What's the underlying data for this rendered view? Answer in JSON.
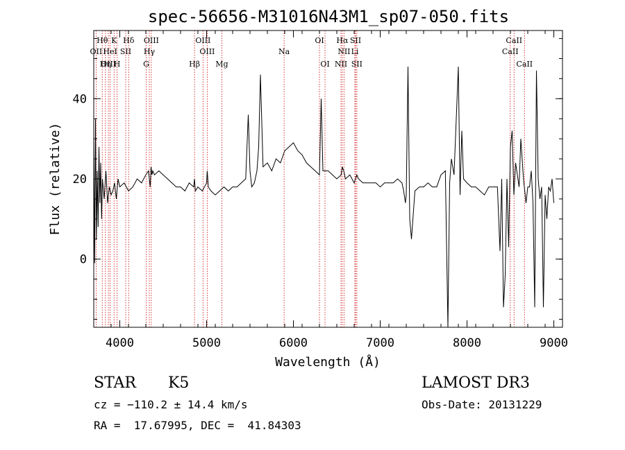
{
  "chart_data": {
    "type": "line",
    "title": "spec-56656-M31016N43M1_sp07-050.fits",
    "xlabel": "Wavelength (Å)",
    "ylabel": "Flux (relative)",
    "xlim": [
      3700,
      9100
    ],
    "ylim": [
      -17,
      57
    ],
    "xticks": [
      4000,
      5000,
      6000,
      7000,
      8000,
      9000
    ],
    "yticks": [
      0,
      20,
      40
    ],
    "grid": false,
    "series": [
      {
        "name": "flux",
        "x": [
          3700,
          3710,
          3720,
          3730,
          3740,
          3750,
          3760,
          3770,
          3780,
          3790,
          3800,
          3820,
          3840,
          3860,
          3880,
          3900,
          3920,
          3940,
          3960,
          3980,
          4000,
          4050,
          4100,
          4150,
          4200,
          4250,
          4300,
          4330,
          4350,
          4360,
          4370,
          4380,
          4400,
          4450,
          4500,
          4550,
          4600,
          4650,
          4700,
          4750,
          4800,
          4850,
          4861,
          4870,
          4900,
          4950,
          5000,
          5007,
          5020,
          5050,
          5100,
          5150,
          5200,
          5250,
          5300,
          5350,
          5400,
          5450,
          5480,
          5500,
          5520,
          5550,
          5580,
          5600,
          5620,
          5650,
          5700,
          5750,
          5800,
          5850,
          5900,
          5950,
          6000,
          6050,
          6100,
          6150,
          6200,
          6250,
          6300,
          6320,
          6340,
          6360,
          6400,
          6450,
          6500,
          6550,
          6563,
          6580,
          6600,
          6650,
          6700,
          6730,
          6750,
          6800,
          6850,
          6900,
          6950,
          7000,
          7050,
          7100,
          7150,
          7200,
          7250,
          7270,
          7290,
          7300,
          7320,
          7340,
          7360,
          7400,
          7450,
          7500,
          7550,
          7600,
          7650,
          7700,
          7750,
          7780,
          7800,
          7820,
          7850,
          7900,
          7920,
          7940,
          7960,
          8000,
          8050,
          8100,
          8150,
          8200,
          8250,
          8300,
          8350,
          8380,
          8400,
          8420,
          8440,
          8460,
          8480,
          8500,
          8520,
          8540,
          8560,
          8600,
          8620,
          8650,
          8680,
          8700,
          8720,
          8740,
          8760,
          8780,
          8800,
          8820,
          8840,
          8860,
          8880,
          8900,
          8920,
          8940,
          8960,
          8980,
          9000
        ],
        "values": [
          30,
          -1,
          35,
          5,
          22,
          8,
          28,
          14,
          24,
          10,
          20,
          15,
          22,
          14,
          18,
          16,
          17,
          19,
          15,
          20,
          18,
          19,
          17,
          18,
          20,
          19,
          21,
          22,
          18,
          23,
          21,
          22,
          21,
          22,
          21,
          20,
          19,
          18,
          18,
          17,
          19,
          18,
          20,
          17,
          18,
          17,
          19,
          22,
          18,
          17,
          16,
          17,
          18,
          17,
          18,
          18,
          19,
          20,
          36,
          22,
          18,
          19,
          22,
          28,
          46,
          23,
          24,
          22,
          25,
          24,
          27,
          28,
          29,
          27,
          26,
          24,
          23,
          22,
          21,
          40,
          22,
          22,
          22,
          21,
          20,
          21,
          23,
          22,
          20,
          21,
          19,
          21,
          20,
          19,
          19,
          19,
          19,
          18,
          19,
          19,
          19,
          20,
          19,
          17,
          14,
          16,
          48,
          10,
          5,
          17,
          18,
          18,
          19,
          18,
          18,
          21,
          22,
          -18,
          19,
          25,
          21,
          48,
          16,
          32,
          20,
          19,
          18,
          18,
          17,
          16,
          18,
          18,
          18,
          2,
          20,
          -12,
          -4,
          20,
          3,
          28,
          32,
          16,
          24,
          18,
          30,
          20,
          14,
          18,
          18,
          22,
          14,
          -12,
          47,
          20,
          15,
          18,
          -12,
          16,
          10,
          18,
          17,
          20,
          14
        ]
      }
    ],
    "lines": [
      {
        "name": "Hθ",
        "x": 3798,
        "row": 1
      },
      {
        "name": "K",
        "x": 3934,
        "row": 1
      },
      {
        "name": "Hδ",
        "x": 4102,
        "row": 1
      },
      {
        "name": "OIII",
        "x": 4363,
        "row": 1
      },
      {
        "name": "OIII",
        "x": 4959,
        "row": 1
      },
      {
        "name": "OI",
        "x": 6300,
        "row": 1
      },
      {
        "name": "Hα",
        "x": 6563,
        "row": 1
      },
      {
        "name": "SII",
        "x": 6716,
        "row": 1
      },
      {
        "name": "CaII",
        "x": 8542,
        "row": 1
      },
      {
        "name": "OII",
        "x": 3727,
        "row": 2
      },
      {
        "name": "HeI",
        "x": 3889,
        "row": 2
      },
      {
        "name": "SII",
        "x": 4068,
        "row": 2
      },
      {
        "name": "Hγ",
        "x": 4340,
        "row": 2
      },
      {
        "name": "OIII",
        "x": 5007,
        "row": 2
      },
      {
        "name": "Na",
        "x": 5893,
        "row": 2
      },
      {
        "name": "NII",
        "x": 6583,
        "row": 2
      },
      {
        "name": "Li",
        "x": 6708,
        "row": 2
      },
      {
        "name": "CaII",
        "x": 8498,
        "row": 2
      },
      {
        "name": "OIII",
        "x": 3869,
        "row": 3
      },
      {
        "name": "Hη",
        "x": 3835,
        "row": 3
      },
      {
        "name": "H",
        "x": 3968,
        "row": 3
      },
      {
        "name": "G",
        "x": 4304,
        "row": 3
      },
      {
        "name": "Hβ",
        "x": 4861,
        "row": 3
      },
      {
        "name": "Mg",
        "x": 5175,
        "row": 3
      },
      {
        "name": "OI",
        "x": 6364,
        "row": 3
      },
      {
        "name": "NII",
        "x": 6548,
        "row": 3
      },
      {
        "name": "SII",
        "x": 6731,
        "row": 3
      },
      {
        "name": "CaII",
        "x": 8662,
        "row": 3
      }
    ]
  },
  "info": {
    "class": "STAR",
    "subclass": "K5",
    "survey": "LAMOST DR3",
    "cz": "cz = −110.2 ± 14.4 km/s",
    "obs_date": "Obs-Date: 20131229",
    "coords": "RA =  17.67995, DEC =  41.84303"
  },
  "colors": {
    "line_marker": "#cc0000",
    "spectrum": "#000000"
  }
}
